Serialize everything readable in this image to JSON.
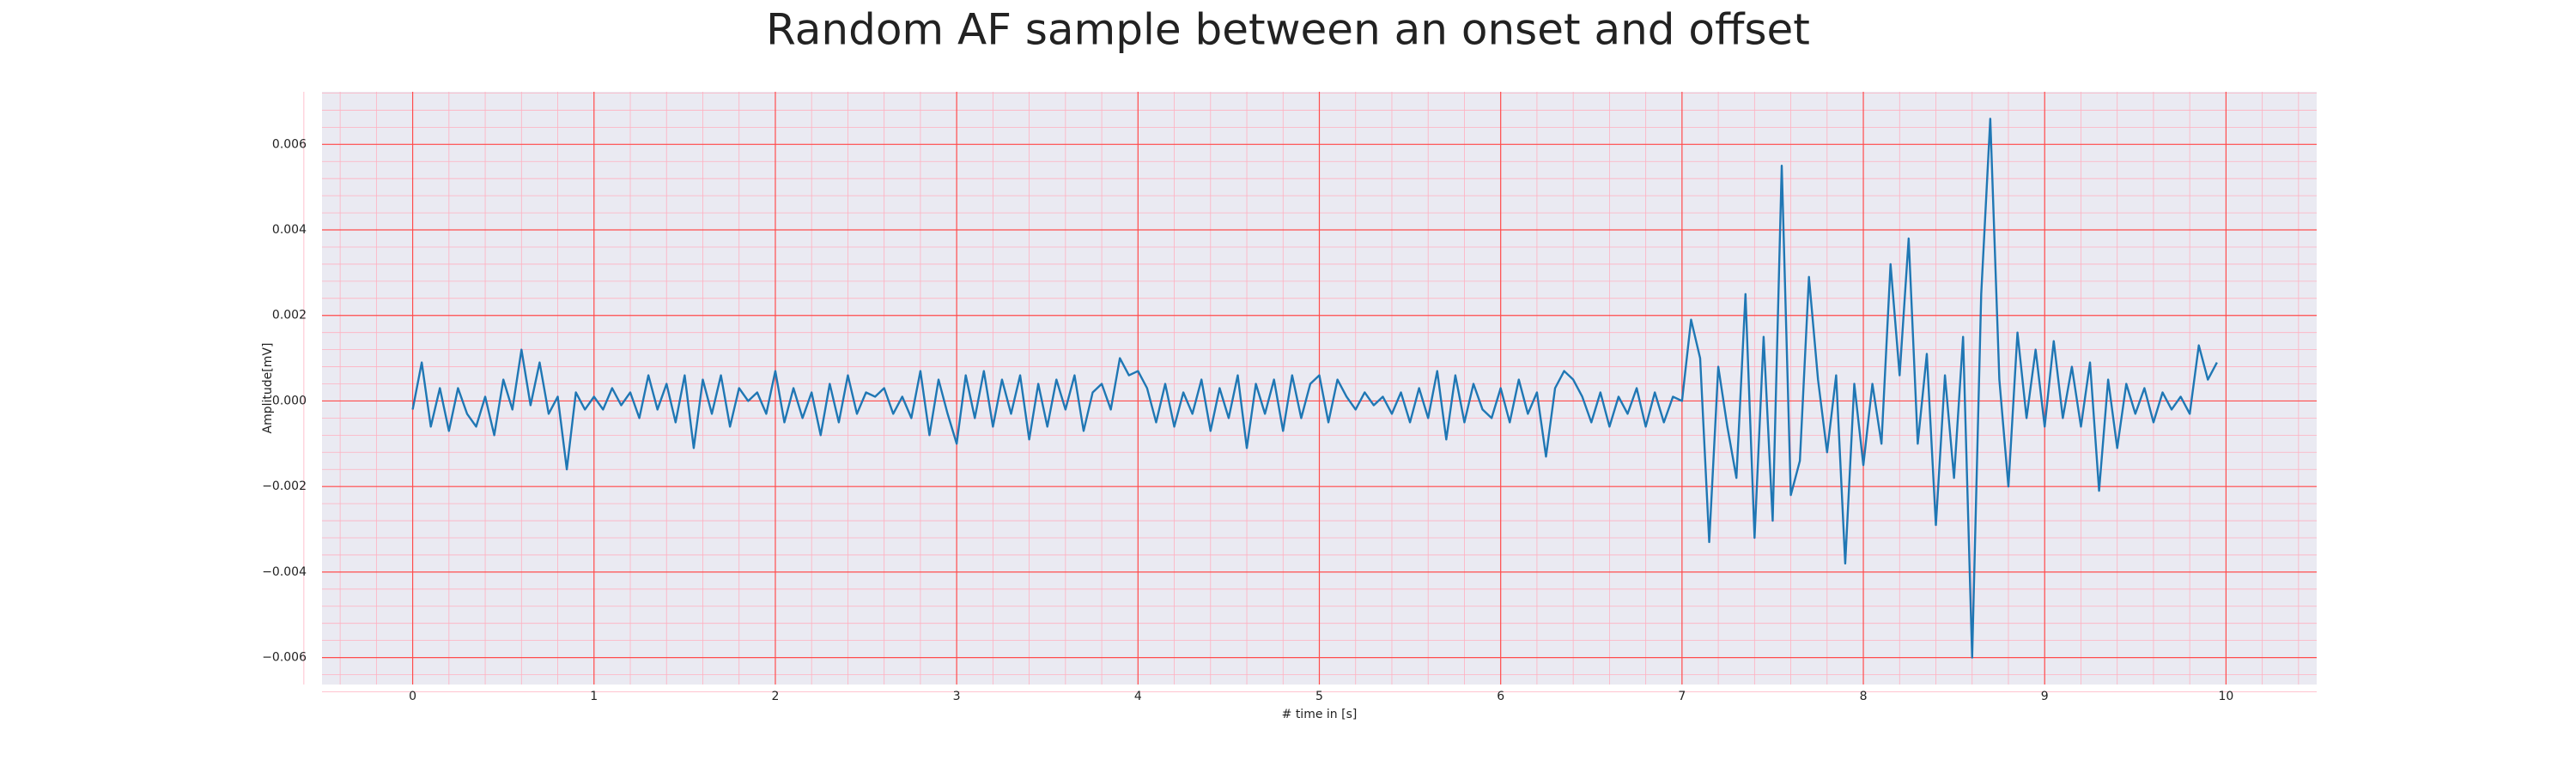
{
  "chart_data": {
    "type": "line",
    "title": "Random AF sample between an onset and offset",
    "xlabel": "# time in [s]",
    "ylabel": "Amplitude[mV]",
    "xlim": [
      -0.5,
      10.5
    ],
    "ylim": [
      -0.00663,
      0.00723
    ],
    "xticks": [
      0,
      1,
      2,
      3,
      4,
      5,
      6,
      7,
      8,
      9,
      10
    ],
    "yticks": [
      {
        "value": -0.006,
        "label": "−0.006"
      },
      {
        "value": -0.004,
        "label": "−0.004"
      },
      {
        "value": -0.002,
        "label": "−0.002"
      },
      {
        "value": 0,
        "label": "0.000"
      },
      0.002,
      0.004,
      0.006
    ],
    "grid": true,
    "grid_color": "#ff4d4d",
    "minor_grid": true,
    "minor_divisions": 5,
    "minor_grid_color": "#ffb0c0",
    "background": "#eaeaf2",
    "series": [
      {
        "color": "#1f77b4",
        "x": [
          0,
          0.05,
          0.1,
          0.15,
          0.2,
          0.25,
          0.3,
          0.35,
          0.4,
          0.45,
          0.5,
          0.55,
          0.6,
          0.65,
          0.7,
          0.75,
          0.8,
          0.85,
          0.9,
          0.95,
          1,
          1.05,
          1.1,
          1.15,
          1.2,
          1.25,
          1.3,
          1.35,
          1.4,
          1.45,
          1.5,
          1.55,
          1.6,
          1.65,
          1.7,
          1.75,
          1.8,
          1.85,
          1.9,
          1.95,
          2,
          2.05,
          2.1,
          2.15,
          2.2,
          2.25,
          2.3,
          2.35,
          2.4,
          2.45,
          2.5,
          2.55,
          2.6,
          2.65,
          2.7,
          2.75,
          2.8,
          2.85,
          2.9,
          2.95,
          3,
          3.05,
          3.1,
          3.15,
          3.2,
          3.25,
          3.3,
          3.35,
          3.4,
          3.45,
          3.5,
          3.55,
          3.6,
          3.65,
          3.7,
          3.75,
          3.8,
          3.85,
          3.9,
          3.95,
          4,
          4.05,
          4.1,
          4.15,
          4.2,
          4.25,
          4.3,
          4.35,
          4.4,
          4.45,
          4.5,
          4.55,
          4.6,
          4.65,
          4.7,
          4.75,
          4.8,
          4.85,
          4.9,
          4.95,
          5,
          5.05,
          5.1,
          5.15,
          5.2,
          5.25,
          5.3,
          5.35,
          5.4,
          5.45,
          5.5,
          5.55,
          5.6,
          5.65,
          5.7,
          5.75,
          5.8,
          5.85,
          5.9,
          5.95,
          6,
          6.05,
          6.1,
          6.15,
          6.2,
          6.25,
          6.3,
          6.35,
          6.4,
          6.45,
          6.5,
          6.55,
          6.6,
          6.65,
          6.7,
          6.75,
          6.8,
          6.85,
          6.9,
          6.95,
          7,
          7.05,
          7.1,
          7.15,
          7.2,
          7.25,
          7.3,
          7.35,
          7.4,
          7.45,
          7.5,
          7.55,
          7.6,
          7.65,
          7.7,
          7.75,
          7.8,
          7.85,
          7.9,
          7.95,
          8,
          8.05,
          8.1,
          8.15,
          8.2,
          8.25,
          8.3,
          8.35,
          8.4,
          8.45,
          8.5,
          8.55,
          8.6,
          8.65,
          8.7,
          8.75,
          8.8,
          8.85,
          8.9,
          8.95,
          9,
          9.05,
          9.1,
          9.15,
          9.2,
          9.25,
          9.3,
          9.35,
          9.4,
          9.45,
          9.5,
          9.55,
          9.6,
          9.65,
          9.7,
          9.75,
          9.8,
          9.85,
          9.9,
          9.95
        ],
        "values": [
          -0.0002,
          0.0009,
          -0.0006,
          0.0003,
          -0.0007,
          0.0003,
          -0.0003,
          -0.0006,
          0.0001,
          -0.0008,
          0.0005,
          -0.0002,
          0.0012,
          -0.0001,
          0.0009,
          -0.0003,
          0.0001,
          -0.0016,
          0.0002,
          -0.0002,
          0.0001,
          -0.0002,
          0.0003,
          -0.0001,
          0.0002,
          -0.0004,
          0.0006,
          -0.0002,
          0.0004,
          -0.0005,
          0.0006,
          -0.0011,
          0.0005,
          -0.0003,
          0.0006,
          -0.0006,
          0.0003,
          0,
          0.0002,
          -0.0003,
          0.0007,
          -0.0005,
          0.0003,
          -0.0004,
          0.0002,
          -0.0008,
          0.0004,
          -0.0005,
          0.0006,
          -0.0003,
          0.0002,
          0.0001,
          0.0003,
          -0.0003,
          0.0001,
          -0.0004,
          0.0007,
          -0.0008,
          0.0005,
          -0.0003,
          -0.001,
          0.0006,
          -0.0004,
          0.0007,
          -0.0006,
          0.0005,
          -0.0003,
          0.0006,
          -0.0009,
          0.0004,
          -0.0006,
          0.0005,
          -0.0002,
          0.0006,
          -0.0007,
          0.0002,
          0.0004,
          -0.0002,
          0.001,
          0.0006,
          0.0007,
          0.0003,
          -0.0005,
          0.0004,
          -0.0006,
          0.0002,
          -0.0003,
          0.0005,
          -0.0007,
          0.0003,
          -0.0004,
          0.0006,
          -0.0011,
          0.0004,
          -0.0003,
          0.0005,
          -0.0007,
          0.0006,
          -0.0004,
          0.0004,
          0.0006,
          -0.0005,
          0.0005,
          0.0001,
          -0.0002,
          0.0002,
          -0.0001,
          0.0001,
          -0.0003,
          0.0002,
          -0.0005,
          0.0003,
          -0.0004,
          0.0007,
          -0.0009,
          0.0006,
          -0.0005,
          0.0004,
          -0.0002,
          -0.0004,
          0.0003,
          -0.0005,
          0.0005,
          -0.0003,
          0.0002,
          -0.0013,
          0.0003,
          0.0007,
          0.0005,
          0.0001,
          -0.0005,
          0.0002,
          -0.0006,
          0.0001,
          -0.0003,
          0.0003,
          -0.0006,
          0.0002,
          -0.0005,
          0.0001,
          0,
          0.0019,
          0.001,
          -0.0033,
          0.0008,
          -0.0006,
          -0.0018,
          0.0025,
          -0.0032,
          0.0015,
          -0.0028,
          0.0055,
          -0.0022,
          -0.0014,
          0.0029,
          0.0005,
          -0.0012,
          0.0006,
          -0.0038,
          0.0004,
          -0.0015,
          0.0004,
          -0.001,
          0.0032,
          0.0006,
          0.0038,
          -0.001,
          0.0011,
          -0.0029,
          0.0006,
          -0.0018,
          0.0015,
          -0.006,
          0.0025,
          0.0066,
          0.0005,
          -0.002,
          0.0016,
          -0.0004,
          0.0012,
          -0.0006,
          0.0014,
          -0.0004,
          0.0008,
          -0.0006,
          0.0009,
          -0.0021,
          0.0005,
          -0.0011,
          0.0004,
          -0.0003,
          0.0003,
          -0.0005,
          0.0002,
          -0.0002,
          0.0001,
          -0.0003,
          0.0013,
          0.0005,
          0.0009
        ]
      }
    ]
  }
}
